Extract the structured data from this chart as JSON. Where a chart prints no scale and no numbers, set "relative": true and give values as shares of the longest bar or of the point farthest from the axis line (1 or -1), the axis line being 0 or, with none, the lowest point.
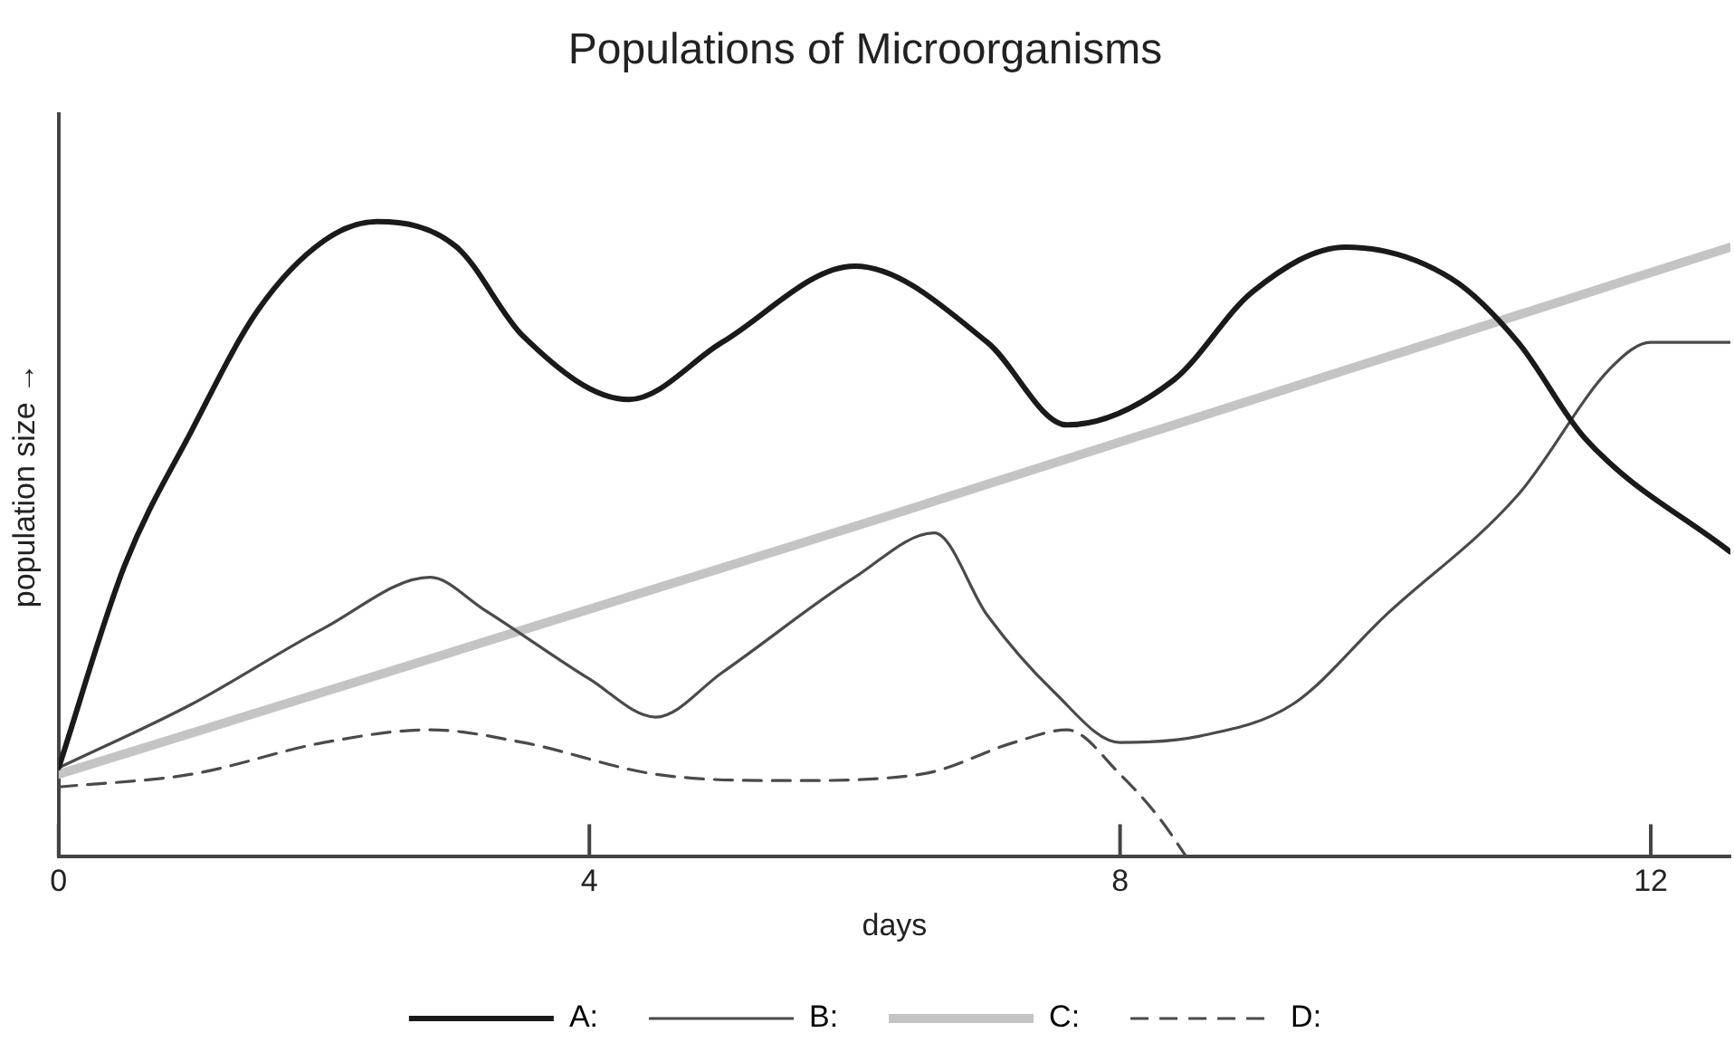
{
  "chart_data": {
    "type": "line",
    "title": "Populations of Microorganisms",
    "xlabel": "days",
    "ylabel": "population size →",
    "relative": true,
    "xlim": [
      0,
      12.6
    ],
    "xticks": [
      0,
      4,
      8,
      12
    ],
    "grid": false,
    "legend": "bottom",
    "marker": "none",
    "series": [
      {
        "name": "A:",
        "color": "#1a1a1a",
        "line_style": "solid",
        "x": [
          0,
          0.5,
          1,
          1.5,
          2,
          2.4,
          3,
          3.5,
          4.3,
          5,
          6,
          7,
          7.6,
          8.4,
          9,
          9.7,
          10.5,
          11,
          11.5,
          12.6
        ],
        "values": [
          0.14,
          0.46,
          0.67,
          0.86,
          0.97,
          1.0,
          0.96,
          0.82,
          0.72,
          0.81,
          0.93,
          0.81,
          0.68,
          0.75,
          0.89,
          0.96,
          0.91,
          0.81,
          0.66,
          0.48
        ]
      },
      {
        "name": "B:",
        "color": "#4a4a4a",
        "line_style": "solid",
        "x": [
          0,
          1,
          2,
          2.8,
          3.2,
          4,
          4.5,
          5,
          6,
          6.6,
          7,
          7.5,
          8,
          8.6,
          9.3,
          10,
          11,
          11.7,
          12,
          12.6
        ],
        "values": [
          0.14,
          0.24,
          0.36,
          0.44,
          0.39,
          0.28,
          0.22,
          0.29,
          0.44,
          0.51,
          0.38,
          0.26,
          0.18,
          0.19,
          0.24,
          0.38,
          0.57,
          0.77,
          0.81,
          0.81
        ]
      },
      {
        "name": "C:",
        "color": "#c4c4c4",
        "line_style": "solid",
        "x": [
          0,
          6,
          12.6
        ],
        "values": [
          0.13,
          0.52,
          0.96
        ]
      },
      {
        "name": "D:",
        "color": "#4a4a4a",
        "line_style": "dashed",
        "x": [
          0,
          1,
          2,
          2.8,
          3.5,
          4.5,
          5.5,
          6.5,
          7.2,
          7.6,
          8,
          8.3,
          8.5
        ],
        "values": [
          0.11,
          0.13,
          0.18,
          0.2,
          0.18,
          0.13,
          0.12,
          0.13,
          0.18,
          0.2,
          0.13,
          0.06,
          0
        ]
      }
    ]
  }
}
